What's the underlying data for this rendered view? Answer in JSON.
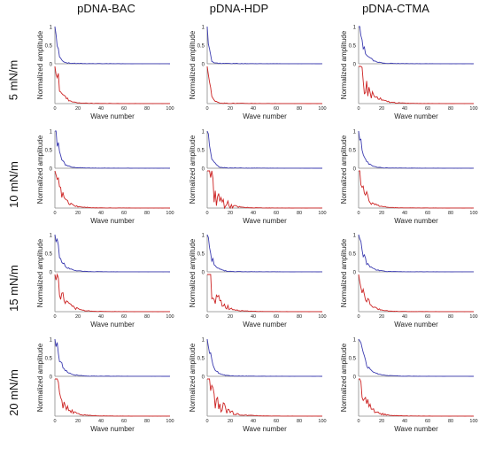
{
  "columns": [
    "pDNA-BAC",
    "pDNA-HDP",
    "pDNA-CTMA"
  ],
  "rows": [
    "5 mN/m",
    "10 mN/m",
    "15 mN/m",
    "20 mN/m"
  ],
  "colors": {
    "top_series": "#3b3bb0",
    "bottom_series": "#cc2222",
    "axes": "#777777"
  },
  "chart_data": {
    "type": "line",
    "ylabel": "Normalized amplitude",
    "xlabel": "Wave number",
    "x_ticks": [
      0,
      20,
      40,
      60,
      80,
      100
    ],
    "top_y_ticks": [
      1,
      0.5,
      0
    ],
    "xlim": [
      0,
      100
    ],
    "ylim_top": [
      0,
      1
    ],
    "ylim_bottom": [
      0,
      1
    ],
    "layout": "4 rows x 3 columns; each cell has two stacked panels (top blue, bottom red) sharing the x-axis",
    "panels": [
      {
        "row": "5 mN/m",
        "column": "pDNA-BAC",
        "top_decay": 2.5,
        "bottom_decay": 5,
        "bottom_noise": 0.1
      },
      {
        "row": "5 mN/m",
        "column": "pDNA-HDP",
        "top_decay": 1.5,
        "bottom_decay": 2.5,
        "bottom_noise": 0.06
      },
      {
        "row": "5 mN/m",
        "column": "pDNA-CTMA",
        "top_decay": 5,
        "bottom_decay": 8,
        "bottom_noise": 0.2
      },
      {
        "row": "10 mN/m",
        "column": "pDNA-BAC",
        "top_decay": 4,
        "bottom_decay": 6,
        "bottom_noise": 0.12
      },
      {
        "row": "10 mN/m",
        "column": "pDNA-HDP",
        "top_decay": 3,
        "bottom_decay": 7,
        "bottom_noise": 0.45
      },
      {
        "row": "10 mN/m",
        "column": "pDNA-CTMA",
        "top_decay": 4,
        "bottom_decay": 6,
        "bottom_noise": 0.14
      },
      {
        "row": "15 mN/m",
        "column": "pDNA-BAC",
        "top_decay": 5,
        "bottom_decay": 7,
        "bottom_noise": 0.15
      },
      {
        "row": "15 mN/m",
        "column": "pDNA-HDP",
        "top_decay": 4,
        "bottom_decay": 8,
        "bottom_noise": 0.18
      },
      {
        "row": "15 mN/m",
        "column": "pDNA-CTMA",
        "top_decay": 5,
        "bottom_decay": 6,
        "bottom_noise": 0.14
      },
      {
        "row": "20 mN/m",
        "column": "pDNA-BAC",
        "top_decay": 5,
        "bottom_decay": 7,
        "bottom_noise": 0.15
      },
      {
        "row": "20 mN/m",
        "column": "pDNA-HDP",
        "top_decay": 4,
        "bottom_decay": 9,
        "bottom_noise": 0.25
      },
      {
        "row": "20 mN/m",
        "column": "pDNA-CTMA",
        "top_decay": 6,
        "bottom_decay": 7,
        "bottom_noise": 0.16
      }
    ]
  }
}
